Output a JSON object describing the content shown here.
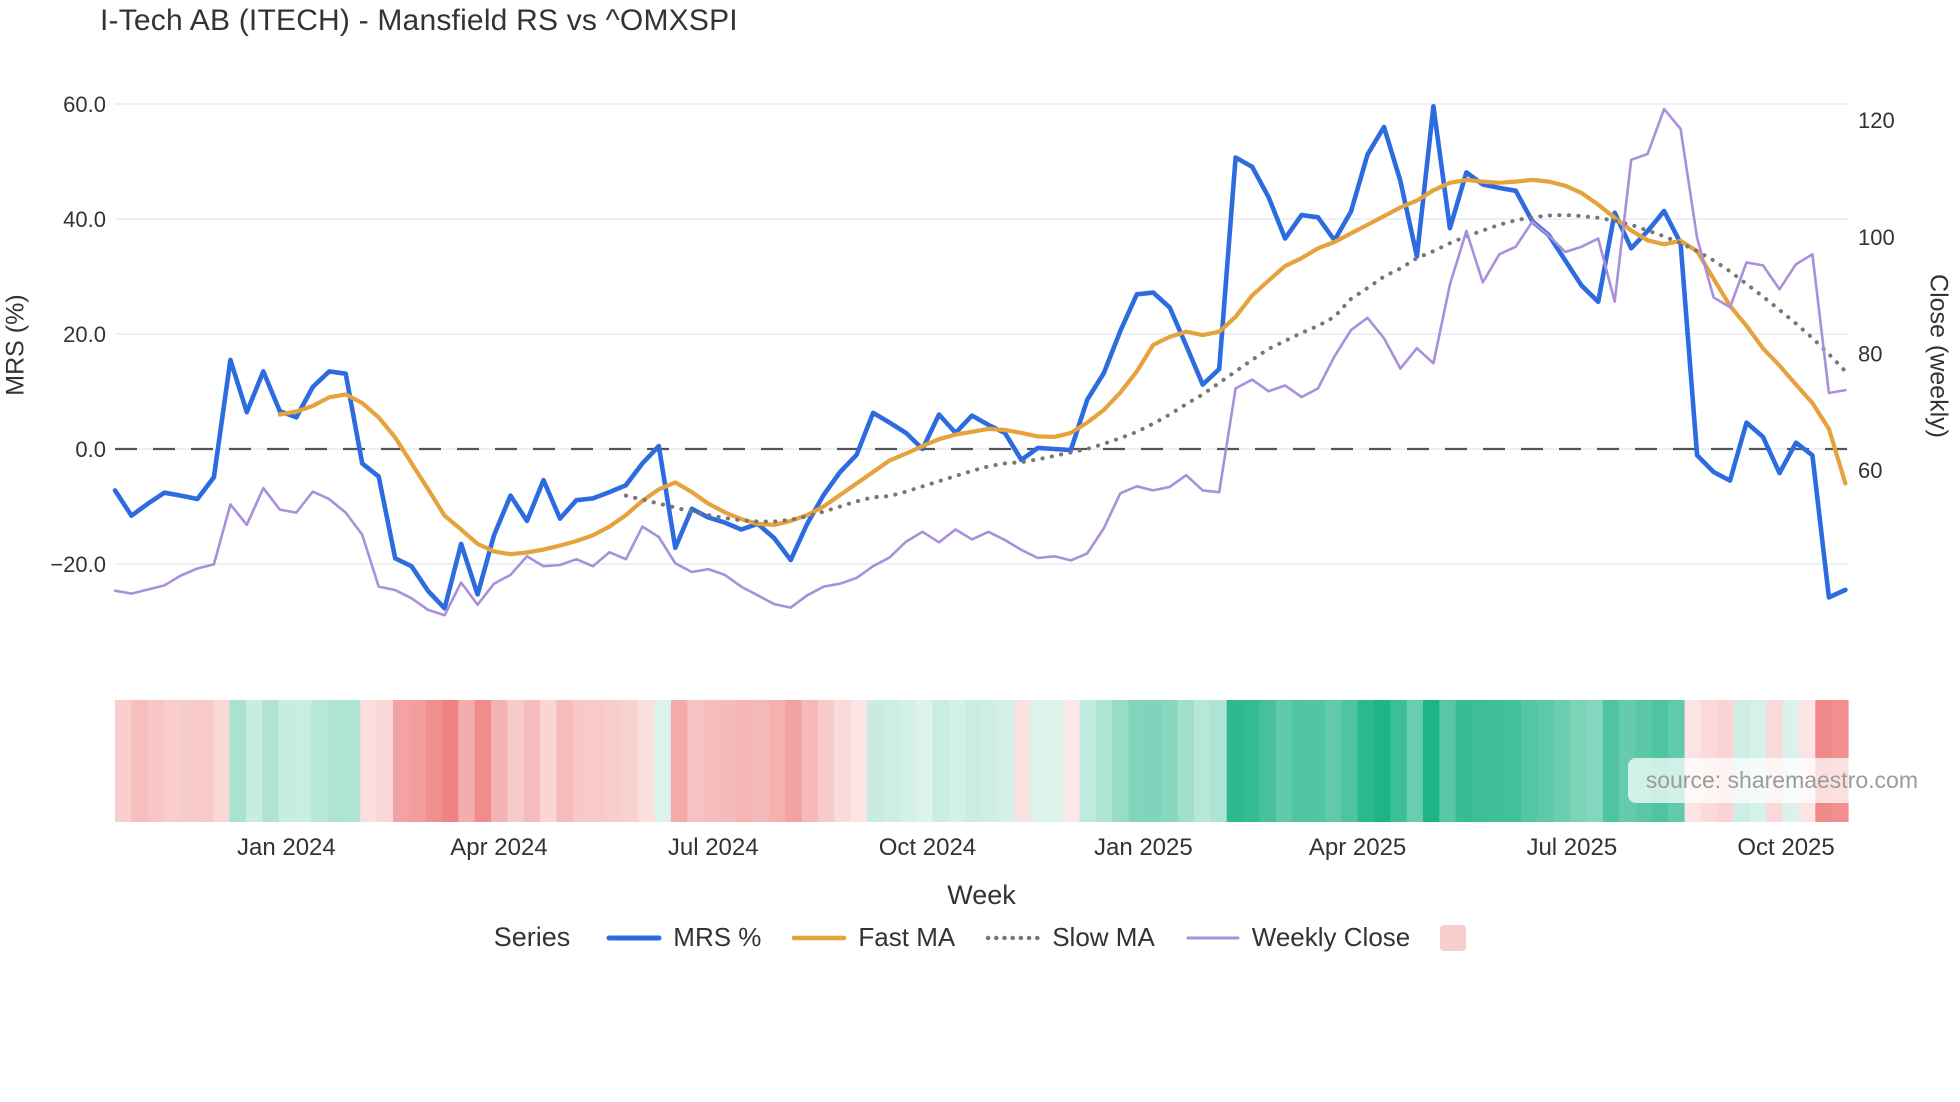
{
  "title": "I-Tech AB (ITECH) - Mansfield RS vs ^OMXSPI",
  "source": "source: sharemaestro.com",
  "colors": {
    "mrs_line": "#2c6ce0",
    "fast_ma_line": "#e6a23c",
    "slow_ma_line": "#777777",
    "weekly_close_line": "#a98fdc",
    "zero_line": "#555555",
    "gridline": "#e8ebf4",
    "tick_text": "#333333",
    "heat_positive": "#1fb487",
    "heat_negative": "#ef8282",
    "legend_swatch": "#f7cdcd"
  },
  "chart_data": {
    "type": "line",
    "title": "I-Tech AB (ITECH) - Mansfield RS vs ^OMXSPI",
    "xlabel": "Week",
    "x_unit": "week-index, 0 = mid-Oct 2023, 105 = early Nov 2025",
    "x_ticks": [
      {
        "label": "Jan 2024",
        "week": 10.4
      },
      {
        "label": "Apr 2024",
        "week": 23.3
      },
      {
        "label": "Jul 2024",
        "week": 36.3
      },
      {
        "label": "Oct 2024",
        "week": 49.3
      },
      {
        "label": "Jan 2025",
        "week": 62.4
      },
      {
        "label": "Apr 2025",
        "week": 75.4
      },
      {
        "label": "Jul 2025",
        "week": 88.4
      },
      {
        "label": "Oct 2025",
        "week": 101.4
      }
    ],
    "y_left": {
      "label": "MRS (%)",
      "ticks": [
        {
          "label": "60.0",
          "value": 60
        },
        {
          "label": "40.0",
          "value": 40
        },
        {
          "label": "20.0",
          "value": 20
        },
        {
          "label": "0.0",
          "value": 0
        },
        {
          "label": "−20.0",
          "value": -20
        }
      ],
      "range": [
        -32,
        62
      ],
      "zero_line_dashed": true
    },
    "y_right": {
      "label": "Close (weekly)",
      "ticks": [
        {
          "label": "120",
          "value": 120
        },
        {
          "label": "100",
          "value": 100
        },
        {
          "label": "80",
          "value": 80
        },
        {
          "label": "60",
          "value": 60
        }
      ],
      "range": [
        34,
        124
      ]
    },
    "legend": {
      "title": "Series",
      "position": "bottom-center",
      "heatmap_swatch": true
    },
    "grid": "horizontal-only",
    "series": [
      {
        "name": "MRS %",
        "axis": "left",
        "style": "solid",
        "color": "#2c6ce0",
        "width": 4.6,
        "values": [
          -7.2,
          -11.6,
          -9.5,
          -7.6,
          -8.1,
          -8.7,
          -4.9,
          15.5,
          6.4,
          13.5,
          6.6,
          5.5,
          10.8,
          13.5,
          13.1,
          -2.5,
          -4.8,
          -19.0,
          -20.4,
          -24.7,
          -27.7,
          -16.5,
          -25.3,
          -15.0,
          -8.1,
          -12.5,
          -5.4,
          -12.1,
          -8.9,
          -8.6,
          -7.5,
          -6.3,
          -2.5,
          0.5,
          -17.2,
          -10.4,
          -11.9,
          -12.8,
          -14.0,
          -13.0,
          -15.5,
          -19.3,
          -13.0,
          -8.0,
          -4.0,
          -1.0,
          6.3,
          4.6,
          2.8,
          0.0,
          6.0,
          2.8,
          5.8,
          4.2,
          2.8,
          -1.9,
          0.2,
          0.0,
          -0.2,
          8.6,
          13.2,
          20.5,
          26.9,
          27.2,
          24.6,
          18.0,
          11.2,
          13.9,
          50.7,
          49.1,
          43.8,
          36.6,
          40.7,
          40.3,
          36.3,
          41.3,
          51.2,
          56.0,
          46.6,
          33.5,
          59.6,
          38.4,
          48.1,
          46.0,
          45.4,
          44.9,
          39.6,
          37.2,
          32.8,
          28.4,
          25.6,
          41.1,
          34.9,
          37.9,
          41.4,
          35.8,
          -1.1,
          -4.0,
          -5.5,
          4.6,
          2.1,
          -4.2,
          1.1,
          -1.1,
          -25.8,
          -24.5
        ]
      },
      {
        "name": "Fast MA",
        "axis": "left",
        "style": "solid",
        "color": "#e6a23c",
        "width": 4.2,
        "values": [
          null,
          null,
          null,
          null,
          null,
          null,
          null,
          null,
          null,
          null,
          6.0,
          6.5,
          7.5,
          9.0,
          9.5,
          8.0,
          5.5,
          2.0,
          -2.5,
          -7.0,
          -11.6,
          -14.0,
          -16.5,
          -17.8,
          -18.3,
          -18.0,
          -17.5,
          -16.8,
          -16.0,
          -15.0,
          -13.5,
          -11.5,
          -9.0,
          -7.0,
          -5.8,
          -7.5,
          -9.5,
          -11.0,
          -12.2,
          -13.0,
          -13.2,
          -12.5,
          -11.5,
          -10.0,
          -8.0,
          -6.0,
          -4.0,
          -2.0,
          -0.8,
          0.5,
          1.7,
          2.5,
          3.0,
          3.5,
          3.3,
          2.8,
          2.2,
          2.1,
          2.8,
          4.6,
          6.8,
          9.8,
          13.5,
          18.1,
          19.5,
          20.4,
          19.8,
          20.4,
          23.0,
          26.7,
          29.3,
          31.8,
          33.2,
          34.9,
          36.0,
          37.5,
          39.0,
          40.5,
          42.0,
          43.2,
          45.0,
          46.3,
          46.8,
          46.5,
          46.3,
          46.5,
          46.8,
          46.5,
          45.8,
          44.5,
          42.5,
          40.2,
          38.0,
          36.3,
          35.6,
          36.2,
          34.4,
          29.6,
          24.9,
          21.4,
          17.5,
          14.5,
          11.2,
          8.0,
          3.5,
          -6.0
        ]
      },
      {
        "name": "Slow MA",
        "axis": "left",
        "style": "dotted",
        "color": "#777777",
        "width": 4,
        "values": [
          null,
          null,
          null,
          null,
          null,
          null,
          null,
          null,
          null,
          null,
          null,
          null,
          null,
          null,
          null,
          null,
          null,
          null,
          null,
          null,
          null,
          null,
          null,
          null,
          null,
          null,
          null,
          null,
          null,
          null,
          null,
          -8.1,
          -8.8,
          -9.5,
          -10.2,
          -10.9,
          -11.5,
          -12.0,
          -12.4,
          -12.6,
          -12.6,
          -12.3,
          -11.7,
          -10.9,
          -10.0,
          -9.1,
          -8.4,
          -8.2,
          -7.4,
          -6.5,
          -5.6,
          -4.7,
          -3.8,
          -3.0,
          -2.5,
          -2.3,
          -1.8,
          -1.2,
          -0.6,
          0.0,
          0.9,
          1.9,
          3.0,
          4.4,
          6.0,
          7.8,
          9.5,
          11.5,
          13.5,
          15.5,
          17.4,
          18.8,
          20.2,
          21.4,
          23.0,
          26.1,
          28.0,
          30.0,
          31.4,
          33.2,
          34.4,
          35.8,
          37.0,
          38.0,
          39.0,
          39.8,
          40.3,
          40.6,
          40.7,
          40.5,
          40.2,
          39.7,
          39.0,
          38.0,
          37.0,
          35.8,
          34.4,
          32.8,
          30.9,
          28.7,
          26.5,
          24.2,
          21.8,
          19.3,
          16.5,
          13.5
        ]
      },
      {
        "name": "Weekly Close",
        "axis": "right",
        "style": "solid",
        "color": "#a98fdc",
        "width": 2.6,
        "values": [
          39.3,
          38.8,
          39.5,
          40.2,
          41.9,
          43.1,
          43.8,
          54.1,
          50.6,
          56.9,
          53.2,
          52.7,
          56.3,
          55.0,
          52.7,
          48.9,
          40.0,
          39.4,
          38.0,
          36.0,
          35.1,
          40.7,
          36.9,
          40.5,
          42.0,
          45.2,
          43.5,
          43.7,
          44.7,
          43.5,
          45.9,
          44.7,
          50.3,
          48.5,
          44.0,
          42.5,
          43.0,
          42.0,
          40.0,
          38.5,
          37.0,
          36.4,
          38.5,
          40.0,
          40.5,
          41.5,
          43.5,
          45.0,
          47.7,
          49.4,
          47.6,
          49.8,
          48.1,
          49.4,
          48.0,
          46.3,
          44.9,
          45.2,
          44.5,
          45.7,
          50.0,
          56.0,
          57.2,
          56.5,
          57.1,
          59.1,
          56.5,
          56.2,
          74.0,
          75.5,
          73.5,
          74.5,
          72.5,
          74.0,
          79.5,
          84.0,
          86.1,
          82.6,
          77.4,
          80.9,
          78.3,
          91.8,
          101.0,
          92.2,
          97.0,
          98.3,
          102.6,
          100.2,
          97.4,
          98.3,
          99.7,
          88.9,
          113.2,
          114.2,
          121.9,
          118.5,
          99.8,
          89.6,
          87.9,
          95.6,
          95.1,
          91.0,
          95.3,
          97.0,
          73.2,
          73.7
        ]
      }
    ],
    "heatmap_strip": {
      "description": "weekly color band below chart, red for negative MRS, green for positive MRS, intensity scales with magnitude",
      "based_on_series": "MRS %",
      "positive_color": "#1fb487",
      "negative_color": "#ef8282"
    }
  }
}
